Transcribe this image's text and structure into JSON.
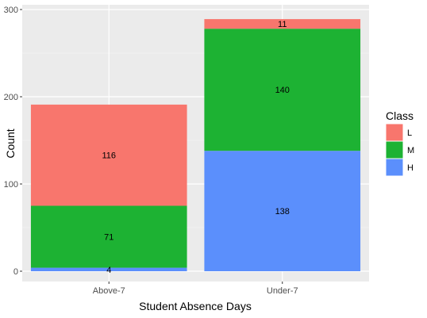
{
  "chart_data": {
    "type": "bar",
    "stacked": true,
    "categories": [
      "Above-7",
      "Under-7"
    ],
    "series": [
      {
        "name": "L",
        "values": [
          116,
          11
        ],
        "color": "#f8766d"
      },
      {
        "name": "M",
        "values": [
          71,
          140
        ],
        "color": "#1db233"
      },
      {
        "name": "H",
        "values": [
          4,
          138
        ],
        "color": "#5b8ffc"
      }
    ],
    "xlabel": "Student Absence Days",
    "ylabel": "Count",
    "ylim": [
      0,
      300
    ],
    "yticks": [
      0,
      100,
      200,
      300
    ],
    "legend": {
      "title": "Class",
      "position": "right"
    },
    "panel_background": "#ebebeb",
    "grid": true
  }
}
